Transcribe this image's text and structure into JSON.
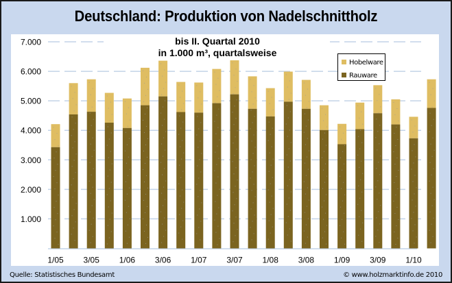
{
  "title": "Deutschland: Produktion von Nadelschnittholz",
  "footer": {
    "source": "Quelle: Statistisches Bundesamt",
    "copyright": "© www.holzmarktinfo.de 2010"
  },
  "colors": {
    "background": "#c9d8ee",
    "rauware": "#7b6420",
    "hobelware": "#dfbd62",
    "gridline": "#c3d3e8"
  },
  "chart_data": {
    "type": "bar",
    "stacked": true,
    "title": "Deutschland: Produktion von Nadelschnittholz",
    "subtitle": [
      "bis II. Quartal 2010",
      "in 1.000 m³, quartalsweise"
    ],
    "xlabel": "",
    "ylabel": "",
    "ylim": [
      0,
      7000
    ],
    "yticks": [
      1000,
      2000,
      3000,
      4000,
      5000,
      6000,
      7000
    ],
    "ytick_labels": [
      "1.000",
      "2.000",
      "3.000",
      "4.000",
      "5.000",
      "6.000",
      "7.000"
    ],
    "grid": true,
    "legend": "top-right",
    "categories": [
      "1/05",
      "2/05",
      "3/05",
      "4/05",
      "1/06",
      "2/06",
      "3/06",
      "4/06",
      "1/07",
      "2/07",
      "3/07",
      "4/07",
      "1/08",
      "2/08",
      "3/08",
      "4/08",
      "1/09",
      "2/09",
      "3/09",
      "4/09",
      "1/10",
      "2/10"
    ],
    "xtick_labels": [
      "1/05",
      "",
      "3/05",
      "",
      "1/06",
      "",
      "3/06",
      "",
      "1/07",
      "",
      "3/07",
      "",
      "1/08",
      "",
      "3/08",
      "",
      "1/09",
      "",
      "3/09",
      "",
      "1/10",
      ""
    ],
    "series": [
      {
        "name": "Rauware",
        "values": [
          3430,
          4540,
          4630,
          4260,
          4080,
          4850,
          5150,
          4620,
          4600,
          4920,
          5220,
          4730,
          4470,
          4970,
          4730,
          4010,
          3530,
          4040,
          4580,
          4200,
          3730,
          4760
        ]
      },
      {
        "name": "Hobelware",
        "values": [
          780,
          1060,
          1100,
          1010,
          1000,
          1270,
          1210,
          1020,
          1020,
          1160,
          1170,
          1100,
          960,
          1020,
          980,
          840,
          690,
          900,
          950,
          850,
          730,
          970
        ]
      }
    ],
    "totals": [
      4210,
      5600,
      5730,
      5270,
      5080,
      6120,
      6360,
      5640,
      5620,
      6080,
      6390,
      5830,
      5430,
      5990,
      5710,
      4850,
      4220,
      4940,
      5530,
      5050,
      4460,
      5730
    ],
    "legend_entries": [
      "Hobelware",
      "Rauware"
    ]
  }
}
